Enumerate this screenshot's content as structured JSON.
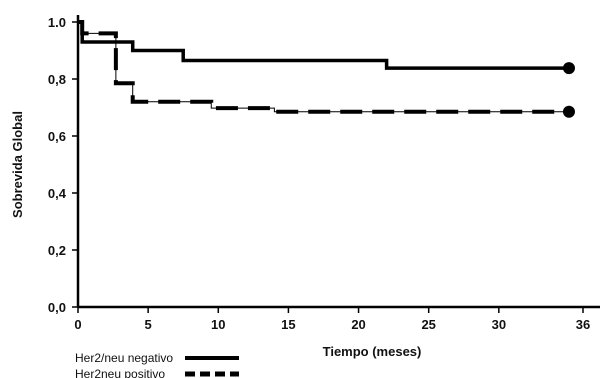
{
  "chart_data": {
    "type": "line",
    "xlabel": "Tiempo (meses)",
    "ylabel": "Sobrevida Global",
    "xlim": [
      0,
      36
    ],
    "ylim": [
      0,
      1.0
    ],
    "x_ticks": [
      0,
      5,
      10,
      15,
      20,
      25,
      30,
      36
    ],
    "x_tick_labels": [
      "0",
      "5",
      "10",
      "15",
      "20",
      "25",
      "30",
      "36"
    ],
    "y_ticks": [
      0,
      0.2,
      0.4,
      0.6,
      0.8,
      1.0
    ],
    "y_tick_labels": [
      "0,0",
      "0,2",
      "0,4",
      "0,6",
      "0,8",
      "1.0"
    ],
    "legend_position": "bottom-left",
    "grid": false,
    "series": [
      {
        "name": "Her2/neu negativo",
        "style": "solid",
        "color": "#000000",
        "step_x": [
          0,
          0.3,
          2.8,
          3.9,
          7.5,
          22,
          35
        ],
        "step_y": [
          1.0,
          0.93,
          0.93,
          0.9,
          0.865,
          0.838,
          0.838
        ],
        "censor_x": [
          35
        ],
        "censor_y": [
          0.838
        ]
      },
      {
        "name": "Her2neu positivo",
        "style": "dashed",
        "color": "#000000",
        "step_x": [
          0,
          0.3,
          2.7,
          3.9,
          9.5,
          14,
          35
        ],
        "step_y": [
          1.0,
          0.96,
          0.785,
          0.72,
          0.698,
          0.685,
          0.685
        ],
        "censor_x": [
          35
        ],
        "censor_y": [
          0.685
        ]
      }
    ]
  }
}
